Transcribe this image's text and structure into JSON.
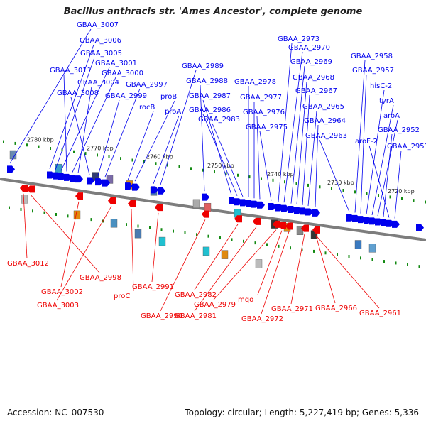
{
  "title": "Bacillus anthracis str. 'Ames Ancestor', complete genome",
  "colors": {
    "forward": "#0000ee",
    "reverse": "#ee0000",
    "backbone": "#7d7d7d",
    "tick": "#138a13"
  },
  "kbp_marks": [
    "2780 kbp",
    "2770 kbp",
    "2760 kbp",
    "2750 kbp",
    "2740 kbp",
    "2730 kbp",
    "2720 kbp"
  ],
  "forward_labels": [
    "GBAA_3007",
    "GBAA_3006",
    "GBAA_3005",
    "GBAA_3001",
    "GBAA_3011",
    "GBAA_3000",
    "GBAA_3004",
    "GBAA_3008",
    "GBAA_2999",
    "GBAA_2997",
    "rocB",
    "proB",
    "proA",
    "GBAA_2989",
    "GBAA_2988",
    "GBAA_2987",
    "GBAA_2986",
    "GBAA_2983",
    "GBAA_2978",
    "GBAA_2977",
    "GBAA_2976",
    "GBAA_2975",
    "GBAA_2973",
    "GBAA_2970",
    "GBAA_2969",
    "GBAA_2968",
    "GBAA_2967",
    "GBAA_2965",
    "GBAA_2964",
    "GBAA_2963",
    "GBAA_2958",
    "GBAA_2957",
    "hisC-2",
    "tyrA",
    "aroA",
    "GBAA_2952",
    "aroF-2",
    "GBAA_2951"
  ],
  "reverse_labels": [
    "GBAA_3012",
    "GBAA_2998",
    "GBAA_3002",
    "GBAA_3003",
    "proC",
    "GBAA_2991",
    "GBAA_2990",
    "GBAA_2982",
    "GBAA_2981",
    "GBAA_2979",
    "mqo",
    "GBAA_2972",
    "GBAA_2971",
    "GBAA_2966",
    "GBAA_2961"
  ],
  "footer": {
    "accession": "Accession: NC_007530",
    "summary": "Topology: circular; Length: 5,227,419 bp; Genes: 5,336"
  }
}
